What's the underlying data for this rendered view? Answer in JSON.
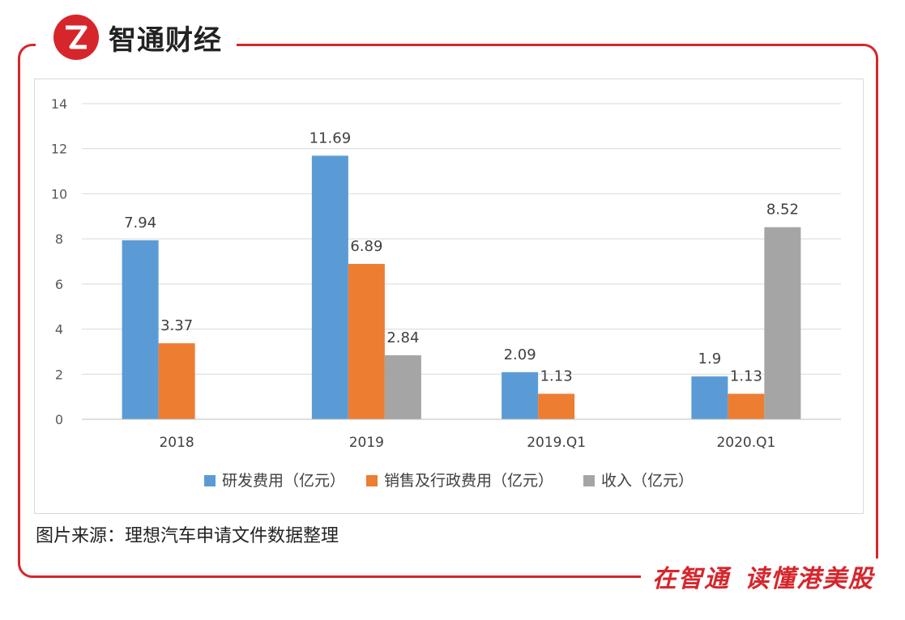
{
  "brand": {
    "name": "智通财经",
    "slogan_a": "在智通",
    "slogan_b": "读懂港美股",
    "color": "#d6262b"
  },
  "source_note": "图片来源：理想汽车申请文件数据整理",
  "chart_data": {
    "type": "bar",
    "title": "",
    "xlabel": "",
    "ylabel": "",
    "categories": [
      "2018",
      "2019",
      "2019.Q1",
      "2020.Q1"
    ],
    "ylim": [
      0,
      14
    ],
    "yticks": [
      0,
      2,
      4,
      6,
      8,
      10,
      12,
      14
    ],
    "grid": true,
    "legend_position": "bottom",
    "series": [
      {
        "name": "研发费用（亿元）",
        "color": "#5b9bd5",
        "values": [
          7.94,
          11.69,
          2.09,
          1.9
        ],
        "labels": [
          "7.94",
          "11.69",
          "2.09",
          "1.9"
        ]
      },
      {
        "name": "销售及行政费用（亿元）",
        "color": "#ed7d31",
        "values": [
          3.37,
          6.89,
          1.13,
          1.13
        ],
        "labels": [
          "3.37",
          "6.89",
          "1.13",
          "1.13"
        ]
      },
      {
        "name": "收入（亿元）",
        "color": "#a5a5a5",
        "values": [
          null,
          2.84,
          null,
          8.52
        ],
        "labels": [
          null,
          "2.84",
          null,
          "8.52"
        ]
      }
    ]
  }
}
